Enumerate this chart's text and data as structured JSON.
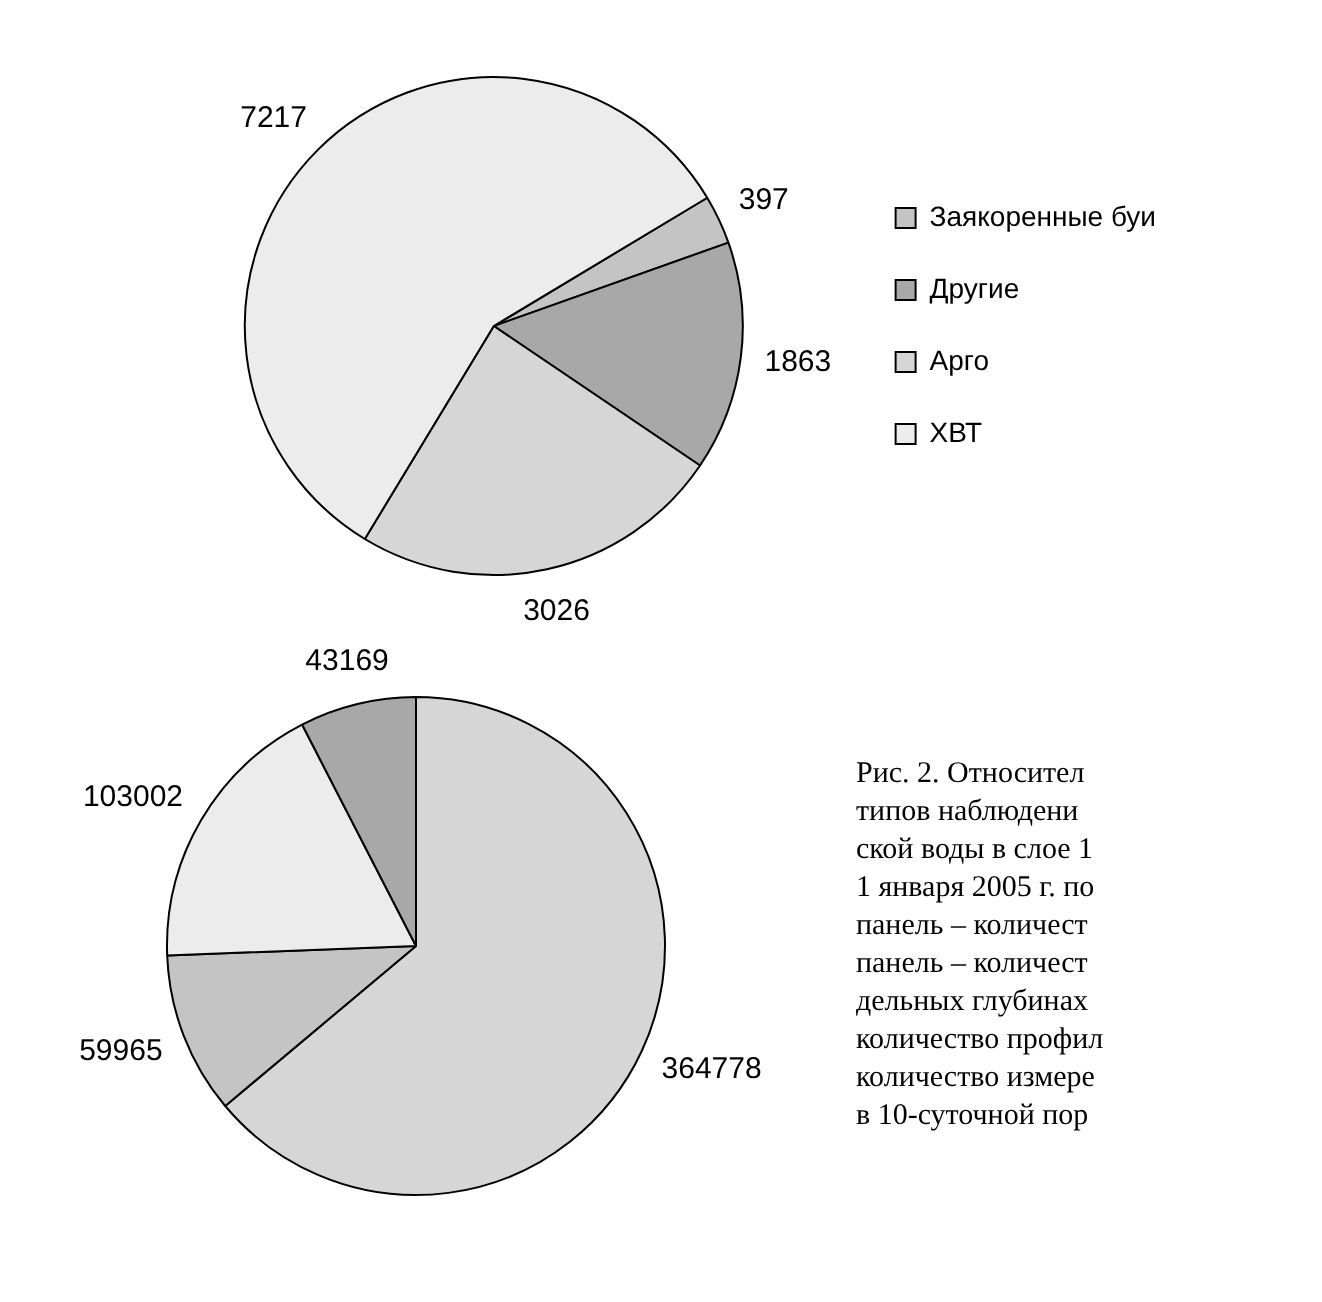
{
  "chart_data": [
    {
      "type": "pie",
      "categories": [
        "Заякоренные буи",
        "Другие",
        "Арго",
        "ХВТ"
      ],
      "values": [
        397,
        1863,
        3026,
        7217
      ],
      "colors": [
        "#c4c4c4",
        "#a8a8a8",
        "#d6d6d6",
        "#ececec"
      ],
      "data_labels": true,
      "legend": "right"
    },
    {
      "type": "pie",
      "categories": [
        null,
        null,
        null,
        null
      ],
      "values": [
        364778,
        59965,
        103002,
        43169
      ],
      "colors": [
        "#d6d6d6",
        "#c4c4c4",
        "#ececec",
        "#a8a8a8"
      ],
      "data_labels": true,
      "annotations": [
        "Рис. 2. Относител\nтипов наблюдени\nской воды в слое 1\n1 января 2005 г. по\nпанель – количест\nпанель – количест\nдельных глубинах\nколичество профил\nколичество измере\nв 10-суточной пор"
      ]
    }
  ]
}
